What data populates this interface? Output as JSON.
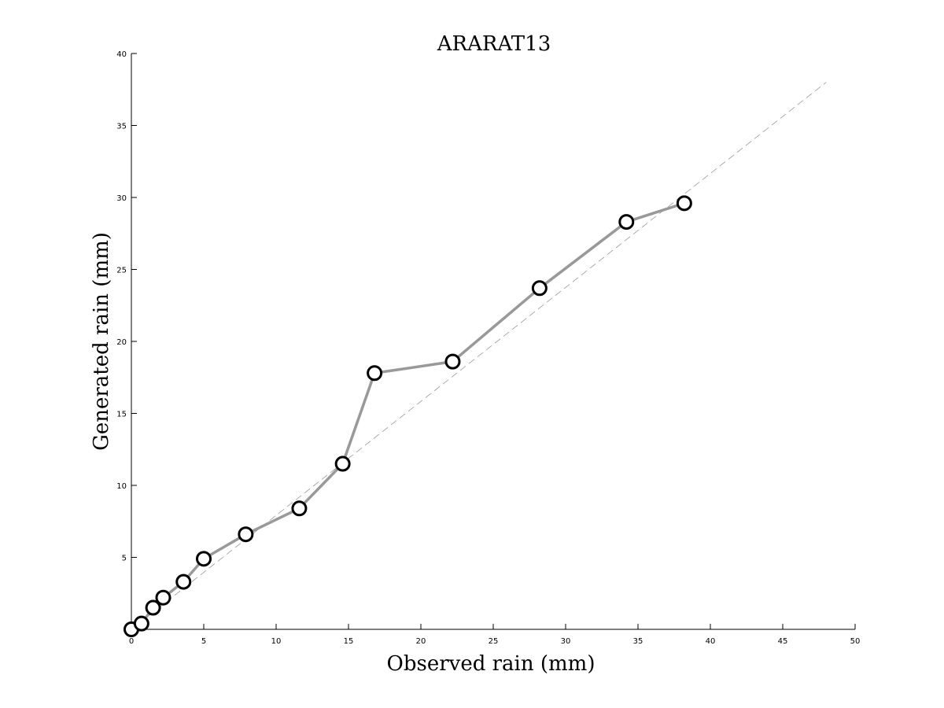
{
  "chart_data": {
    "type": "line",
    "title": "ARARAT13",
    "xlabel": "Observed rain (mm)",
    "ylabel": "Generated rain (mm)",
    "xlim": [
      0,
      50
    ],
    "ylim": [
      0,
      40
    ],
    "xticks": [
      0,
      5,
      10,
      15,
      20,
      25,
      30,
      35,
      40,
      45,
      50
    ],
    "yticks": [
      5,
      10,
      15,
      20,
      25,
      30,
      35,
      40
    ],
    "grid": false,
    "reference_line": {
      "style": "dashed",
      "x": [
        0,
        48
      ],
      "y": [
        0,
        38
      ]
    },
    "series": [
      {
        "marker": "circle",
        "x": [
          0.0,
          0.7,
          1.5,
          2.2,
          3.6,
          5.0,
          7.9,
          11.6,
          14.6,
          16.8,
          22.2,
          28.2,
          34.2,
          38.2
        ],
        "y": [
          0.0,
          0.4,
          1.5,
          2.2,
          3.3,
          4.9,
          6.6,
          8.4,
          11.5,
          17.8,
          18.6,
          23.7,
          28.3,
          29.6
        ]
      }
    ]
  }
}
